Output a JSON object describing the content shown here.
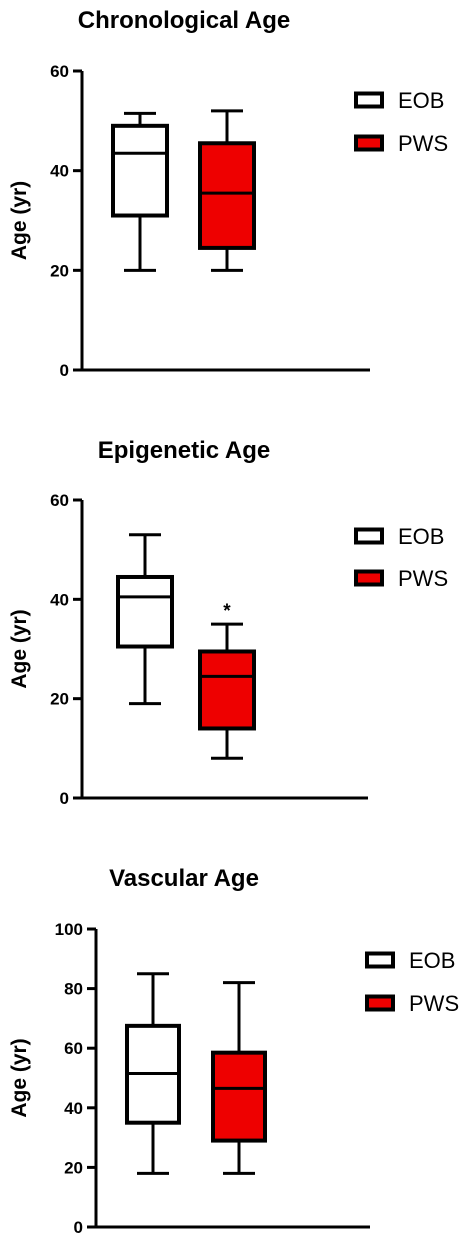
{
  "chart_data": [
    {
      "type": "box",
      "title": "Chronological Age",
      "ylabel": "Age (yr)",
      "ylim": [
        0,
        60
      ],
      "yticks": [
        0,
        20,
        40,
        60
      ],
      "grid": false,
      "legend_position": "right",
      "series": [
        {
          "name": "EOB",
          "color": "#ffffff",
          "min": 20,
          "q1": 31,
          "median": 43.5,
          "q3": 49,
          "max": 51.5
        },
        {
          "name": "PWS",
          "color": "#ee0000",
          "min": 20,
          "q1": 24.5,
          "median": 35.5,
          "q3": 45.5,
          "max": 52
        }
      ],
      "annotations": []
    },
    {
      "type": "box",
      "title": "Epigenetic Age",
      "ylabel": "Age (yr)",
      "ylim": [
        0,
        60
      ],
      "yticks": [
        0,
        20,
        40,
        60
      ],
      "grid": false,
      "legend_position": "right",
      "series": [
        {
          "name": "EOB",
          "color": "#ffffff",
          "min": 19,
          "q1": 30.5,
          "median": 40.5,
          "q3": 44.5,
          "max": 53
        },
        {
          "name": "PWS",
          "color": "#ee0000",
          "min": 8,
          "q1": 14,
          "median": 24.5,
          "q3": 29.5,
          "max": 35
        }
      ],
      "annotations": [
        {
          "series": "PWS",
          "text": "*"
        }
      ]
    },
    {
      "type": "box",
      "title": "Vascular Age",
      "ylabel": "Age (yr)",
      "ylim": [
        0,
        100
      ],
      "yticks": [
        0,
        20,
        40,
        60,
        80,
        100
      ],
      "grid": false,
      "legend_position": "right",
      "series": [
        {
          "name": "EOB",
          "color": "#ffffff",
          "min": 18,
          "q1": 35,
          "median": 51.5,
          "q3": 67.5,
          "max": 85
        },
        {
          "name": "PWS",
          "color": "#ee0000",
          "min": 18,
          "q1": 29,
          "median": 46.5,
          "q3": 58.5,
          "max": 82
        }
      ],
      "annotations": []
    }
  ]
}
